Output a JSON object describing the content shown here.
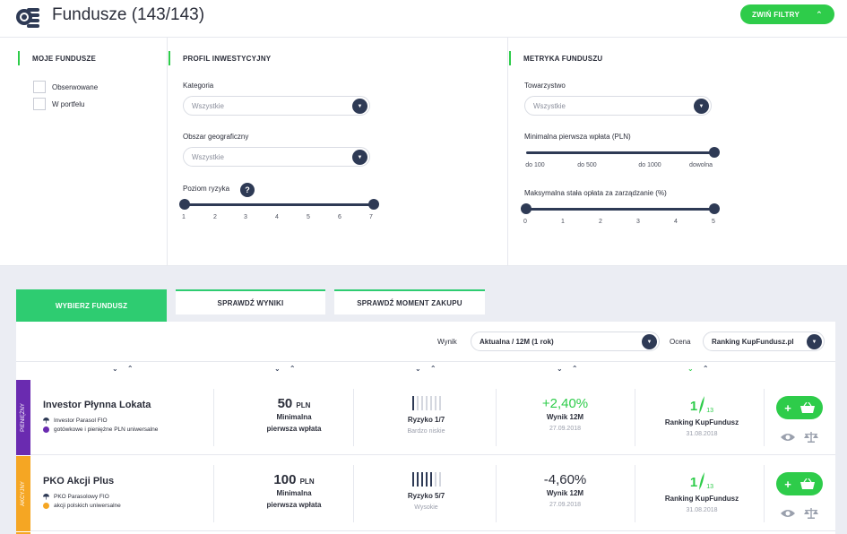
{
  "header": {
    "title": "Fundusze (143/143)",
    "collapse_label": "ZWIŃ FILTRY"
  },
  "filters": {
    "my_funds": {
      "title": "MOJE FUNDUSZE",
      "options": [
        "Obserwowane",
        "W portfelu"
      ]
    },
    "profile": {
      "title": "PROFIL INWESTYCYJNY",
      "category_label": "Kategoria",
      "category_value": "Wszystkie",
      "region_label": "Obszar geograficzny",
      "region_value": "Wszystkie",
      "risk_label": "Poziom ryzyka",
      "risk_help": "?",
      "risk_ticks": [
        "1",
        "2",
        "3",
        "4",
        "5",
        "6",
        "7"
      ],
      "risk_range": [
        1,
        7
      ]
    },
    "metrics": {
      "title": "METRYKA FUNDUSZU",
      "company_label": "Towarzystwo",
      "company_value": "Wszystkie",
      "min_payment_label": "Minimalna pierwsza wpłata (PLN)",
      "min_payment_ticks": [
        "do 100",
        "do 500",
        "do 1000",
        "dowolna"
      ],
      "min_payment_value": "dowolna",
      "fee_label": "Maksymalna stała opłata za zarządzanie (%)",
      "fee_ticks": [
        "0",
        "1",
        "2",
        "3",
        "4",
        "5"
      ],
      "fee_range": [
        0,
        5
      ]
    }
  },
  "tabs": [
    {
      "label": "WYBIERZ FUNDUSZ",
      "active": true
    },
    {
      "label": "SPRAWDŹ WYNIKI",
      "active": false
    },
    {
      "label": "SPRAWDŹ MOMENT ZAKUPU",
      "active": false
    }
  ],
  "sort": {
    "result_label": "Wynik",
    "result_value": "Aktualna / 12M (1 rok)",
    "rating_label": "Ocena",
    "rating_value": "Ranking KupFundusz.pl",
    "arrows": "⌄ ⌃"
  },
  "funds": [
    {
      "category": "PIENIĘŻNY",
      "category_color": "#6a2bb0",
      "name": "Investor Płynna Lokata",
      "manager": "Investor Parasol FIO",
      "type": "gotówkowe i pieniężne PLN uniwersalne",
      "dot_color": "#6a2bb0",
      "min_amount": "50",
      "currency": "PLN",
      "min_label_1": "Minimalna",
      "min_label_2": "pierwsza wpłata",
      "risk_level": 1,
      "risk_label": "Ryzyko 1/7",
      "risk_desc": "Bardzo niskie",
      "result": "+2,40%",
      "result_positive": true,
      "result_label": "Wynik 12M",
      "result_date": "27.09.2018",
      "rank": "1",
      "rank_total": "13",
      "rank_label": "Ranking KupFundusz",
      "rank_date": "31.08.2018"
    },
    {
      "category": "AKCYJNY",
      "category_color": "#f5a623",
      "name": "PKO Akcji Plus",
      "manager": "PKO Parasolowy FIO",
      "type": "akcji polskich uniwersalne",
      "dot_color": "#f5a623",
      "min_amount": "100",
      "currency": "PLN",
      "min_label_1": "Minimalna",
      "min_label_2": "pierwsza wpłata",
      "risk_level": 5,
      "risk_label": "Ryzyko 5/7",
      "risk_desc": "Wysokie",
      "result": "-4,60%",
      "result_positive": false,
      "result_label": "Wynik 12M",
      "result_date": "27.09.2018",
      "rank": "1",
      "rank_total": "13",
      "rank_label": "Ranking KupFundusz",
      "rank_date": "31.08.2018"
    }
  ]
}
